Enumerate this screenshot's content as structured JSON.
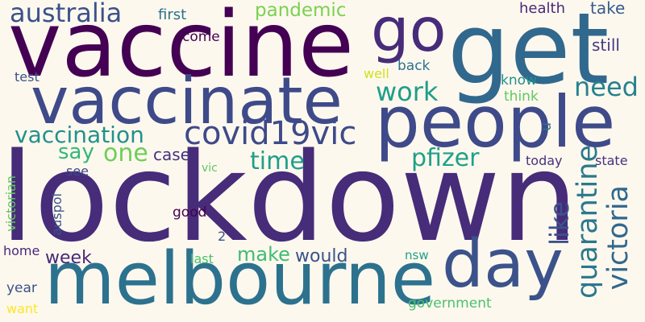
{
  "words": [
    {
      "text": "lockdown",
      "color": "#472c7a"
    },
    {
      "text": "vaccine",
      "color": "#440154"
    },
    {
      "text": "get",
      "color": "#31688e"
    },
    {
      "text": "melbourne",
      "color": "#2c728e"
    },
    {
      "text": "vaccinate",
      "color": "#3e4a89"
    },
    {
      "text": "people",
      "color": "#3e4a89"
    },
    {
      "text": "go",
      "color": "#472c7a"
    },
    {
      "text": "day",
      "color": "#3b528b"
    },
    {
      "text": "australia",
      "color": "#3b528b"
    },
    {
      "text": "covid19vic",
      "color": "#3e4a89"
    },
    {
      "text": "vaccination",
      "color": "#21918c"
    },
    {
      "text": "victoria",
      "color": "#31688e"
    },
    {
      "text": "quarantine",
      "color": "#2a788e"
    },
    {
      "text": "like",
      "color": "#3b528b"
    },
    {
      "text": "work",
      "color": "#1f9e89"
    },
    {
      "text": "need",
      "color": "#26828e"
    },
    {
      "text": "pfizer",
      "color": "#1fa187"
    },
    {
      "text": "time",
      "color": "#1f9e89"
    },
    {
      "text": "one",
      "color": "#6ece58"
    },
    {
      "text": "say",
      "color": "#35b779"
    },
    {
      "text": "pandemic",
      "color": "#7ad151"
    },
    {
      "text": "make",
      "color": "#3fbc73"
    },
    {
      "text": "would",
      "color": "#3b528b"
    },
    {
      "text": "week",
      "color": "#482878"
    },
    {
      "text": "case",
      "color": "#46327e"
    },
    {
      "text": "first",
      "color": "#2c728e"
    },
    {
      "text": "health",
      "color": "#482878"
    },
    {
      "text": "take",
      "color": "#365c8d"
    },
    {
      "text": "still",
      "color": "#443983"
    },
    {
      "text": "come",
      "color": "#440154"
    },
    {
      "text": "back",
      "color": "#2c728e"
    },
    {
      "text": "well",
      "color": "#d0e11c"
    },
    {
      "text": "know",
      "color": "#21918c"
    },
    {
      "text": "think",
      "color": "#5ec962"
    },
    {
      "text": "u",
      "color": "#2c728e"
    },
    {
      "text": "test",
      "color": "#3b528b"
    },
    {
      "text": "today",
      "color": "#46327e"
    },
    {
      "text": "state",
      "color": "#46327e"
    },
    {
      "text": "see",
      "color": "#3e4a89"
    },
    {
      "text": "vic",
      "color": "#5ec962"
    },
    {
      "text": "good",
      "color": "#440154"
    },
    {
      "text": "2",
      "color": "#3b528b"
    },
    {
      "text": "victorian",
      "color": "#5ec962"
    },
    {
      "text": "auspol",
      "color": "#3b528b"
    },
    {
      "text": "home",
      "color": "#482878"
    },
    {
      "text": "last",
      "color": "#4ac16d"
    },
    {
      "text": "nsw",
      "color": "#1fa187"
    },
    {
      "text": "year",
      "color": "#3b528b"
    },
    {
      "text": "want",
      "color": "#fde725"
    },
    {
      "text": "government",
      "color": "#4ac16d"
    }
  ]
}
